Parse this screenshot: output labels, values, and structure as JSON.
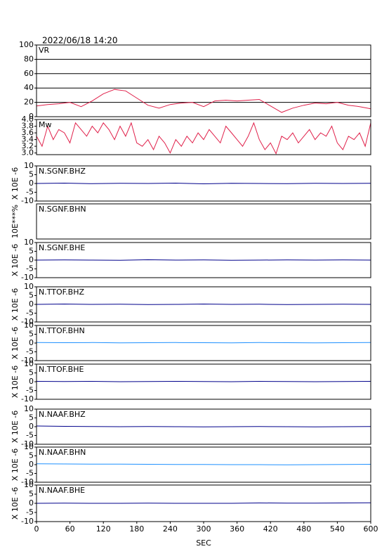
{
  "title": "2022/06/18 14:20",
  "chart_data": [
    {
      "type": "line",
      "label": "VR",
      "color": "#e0204a",
      "x": [
        0,
        20,
        40,
        60,
        80,
        100,
        120,
        140,
        160,
        180,
        200,
        220,
        240,
        260,
        280,
        300,
        320,
        340,
        360,
        380,
        400,
        420,
        440,
        460,
        480,
        500,
        520,
        540,
        560,
        580,
        600
      ],
      "values": [
        15,
        17,
        18,
        20,
        14,
        22,
        32,
        38,
        36,
        26,
        16,
        12,
        17,
        19,
        20,
        14,
        22,
        23,
        22,
        23,
        24,
        15,
        6,
        12,
        16,
        19,
        18,
        20,
        16,
        14,
        11
      ],
      "xlim": [
        0,
        600
      ],
      "ylim": [
        0,
        100
      ],
      "yticks": [
        0,
        20,
        40,
        60,
        80,
        100
      ],
      "grid": true
    },
    {
      "type": "line",
      "label": "Mw",
      "color": "#e0204a",
      "x": [
        0,
        10,
        20,
        30,
        40,
        50,
        60,
        70,
        80,
        90,
        100,
        110,
        120,
        130,
        140,
        150,
        160,
        170,
        180,
        190,
        200,
        210,
        220,
        230,
        240,
        250,
        260,
        270,
        280,
        290,
        300,
        310,
        320,
        330,
        340,
        350,
        360,
        370,
        380,
        390,
        400,
        410,
        420,
        430,
        440,
        450,
        460,
        470,
        480,
        490,
        500,
        510,
        520,
        530,
        540,
        550,
        560,
        570,
        580,
        590,
        600
      ],
      "values": [
        3.5,
        3.2,
        3.8,
        3.4,
        3.7,
        3.6,
        3.3,
        3.9,
        3.7,
        3.5,
        3.8,
        3.6,
        3.9,
        3.7,
        3.4,
        3.8,
        3.5,
        3.9,
        3.3,
        3.2,
        3.4,
        3.1,
        3.5,
        3.3,
        3.0,
        3.4,
        3.2,
        3.5,
        3.3,
        3.6,
        3.4,
        3.7,
        3.5,
        3.3,
        3.8,
        3.6,
        3.4,
        3.2,
        3.5,
        3.9,
        3.4,
        3.1,
        3.3,
        2.98,
        3.5,
        3.4,
        3.6,
        3.3,
        3.5,
        3.7,
        3.4,
        3.6,
        3.5,
        3.8,
        3.3,
        3.1,
        3.5,
        3.4,
        3.6,
        3.2,
        3.9
      ],
      "xlim": [
        0,
        600
      ],
      "ylim": [
        2.95,
        4.0
      ],
      "yticks": [
        {
          "value": 3,
          "label": "3.0"
        },
        3.2,
        3.4,
        3.6,
        3.8,
        {
          "value": 4,
          "label": "4.0"
        }
      ],
      "grid": false
    },
    {
      "type": "line",
      "label": "N.SGNF.BHZ",
      "ylabel": "X 10E -6",
      "color": "#00008b",
      "x": [
        0,
        50,
        100,
        150,
        200,
        250,
        300,
        350,
        400,
        450,
        500,
        550,
        600
      ],
      "values": [
        0,
        0.2,
        -0.1,
        0.1,
        0,
        0.2,
        -0.2,
        0.1,
        0,
        -0.1,
        0.1,
        0,
        0.1
      ],
      "xlim": [
        0,
        600
      ],
      "ylim": [
        -10,
        10
      ],
      "yticks": [
        -10,
        -5,
        0,
        5,
        10
      ]
    },
    {
      "type": "line",
      "label": "N.SGNF.BHN",
      "ylabel": "10E***%"
    },
    {
      "type": "line",
      "label": "N.SGNF.BHE",
      "ylabel": "X 10E -6",
      "color": "#00008b",
      "x": [
        0,
        50,
        100,
        150,
        200,
        250,
        300,
        350,
        400,
        450,
        500,
        550,
        600
      ],
      "values": [
        0,
        0.1,
        0,
        -0.1,
        0.2,
        0,
        0.1,
        -0.1,
        0,
        0.1,
        0,
        0.1,
        0
      ],
      "xlim": [
        0,
        600
      ],
      "ylim": [
        -10,
        10
      ],
      "yticks": [
        -10,
        -5,
        0,
        5,
        10
      ]
    },
    {
      "type": "line",
      "label": "N.TTOF.BHZ",
      "ylabel": "X 10E -6",
      "color": "#00008b",
      "x": [
        0,
        50,
        100,
        150,
        200,
        250,
        300,
        350,
        400,
        450,
        500,
        550,
        600
      ],
      "values": [
        0,
        0.2,
        0,
        0.1,
        -0.1,
        0,
        0.2,
        0,
        0.1,
        -0.1,
        0,
        0.1,
        0
      ],
      "xlim": [
        0,
        600
      ],
      "ylim": [
        -10,
        10
      ],
      "yticks": [
        -10,
        -5,
        0,
        5,
        10
      ]
    },
    {
      "type": "line",
      "label": "N.TTOF.BHN",
      "ylabel": "X 10E -6",
      "color": "#1e90ff",
      "x": [
        0,
        50,
        100,
        150,
        200,
        250,
        300,
        350,
        400,
        450,
        500,
        550,
        600
      ],
      "values": [
        0.3,
        0.2,
        0.3,
        0.1,
        0.2,
        0.3,
        0.2,
        0.1,
        0.3,
        0.2,
        0.1,
        0.2,
        0.3
      ],
      "xlim": [
        0,
        600
      ],
      "ylim": [
        -10,
        10
      ],
      "yticks": [
        -10,
        -5,
        0,
        5,
        10
      ]
    },
    {
      "type": "line",
      "label": "N.TTOF.BHE",
      "ylabel": "X 10E -6",
      "color": "#00008b",
      "x": [
        0,
        50,
        100,
        150,
        200,
        250,
        300,
        350,
        400,
        450,
        500,
        550,
        600
      ],
      "values": [
        0.2,
        0.1,
        0.2,
        0,
        0.1,
        0.2,
        0.1,
        0,
        0.2,
        0.1,
        0,
        0.1,
        0.2
      ],
      "xlim": [
        0,
        600
      ],
      "ylim": [
        -10,
        10
      ],
      "yticks": [
        -10,
        -5,
        0,
        5,
        10
      ]
    },
    {
      "type": "line",
      "label": "N.NAAF.BHZ",
      "ylabel": "X 10E -6",
      "color": "#00008b",
      "x": [
        0,
        50,
        100,
        150,
        200,
        250,
        300,
        350,
        400,
        450,
        500,
        550,
        600
      ],
      "values": [
        0.4,
        0.2,
        0.1,
        0,
        0.1,
        0,
        -0.1,
        0,
        0.1,
        0,
        -0.1,
        0,
        0.1
      ],
      "xlim": [
        0,
        600
      ],
      "ylim": [
        -10,
        10
      ],
      "yticks": [
        -10,
        -5,
        0,
        5,
        10
      ]
    },
    {
      "type": "line",
      "label": "N.NAAF.BHN",
      "ylabel": "X 10E -6",
      "color": "#1e90ff",
      "x": [
        0,
        50,
        100,
        150,
        200,
        250,
        300,
        350,
        400,
        450,
        500,
        550,
        600
      ],
      "values": [
        0.5,
        0.4,
        0.3,
        0.3,
        0.2,
        0.1,
        0.1,
        0,
        0,
        -0.1,
        0,
        0.1,
        0.2
      ],
      "xlim": [
        0,
        600
      ],
      "ylim": [
        -10,
        10
      ],
      "yticks": [
        -10,
        -5,
        0,
        5,
        10
      ]
    },
    {
      "type": "line",
      "label": "N.NAAF.BHE",
      "ylabel": "X 10E -6",
      "color": "#00008b",
      "xlabel": "SEC",
      "x": [
        0,
        50,
        100,
        150,
        200,
        250,
        300,
        350,
        400,
        450,
        500,
        550,
        600
      ],
      "values": [
        0,
        0.1,
        0,
        0,
        0.1,
        0,
        0,
        0,
        0.2,
        0.1,
        0.1,
        0.2,
        0.3
      ],
      "xlim": [
        0,
        600
      ],
      "ylim": [
        -10,
        10
      ],
      "yticks": [
        -10,
        -5,
        0,
        5,
        10
      ],
      "xticks": [
        0,
        60,
        120,
        180,
        240,
        300,
        360,
        420,
        480,
        540,
        600
      ]
    }
  ]
}
